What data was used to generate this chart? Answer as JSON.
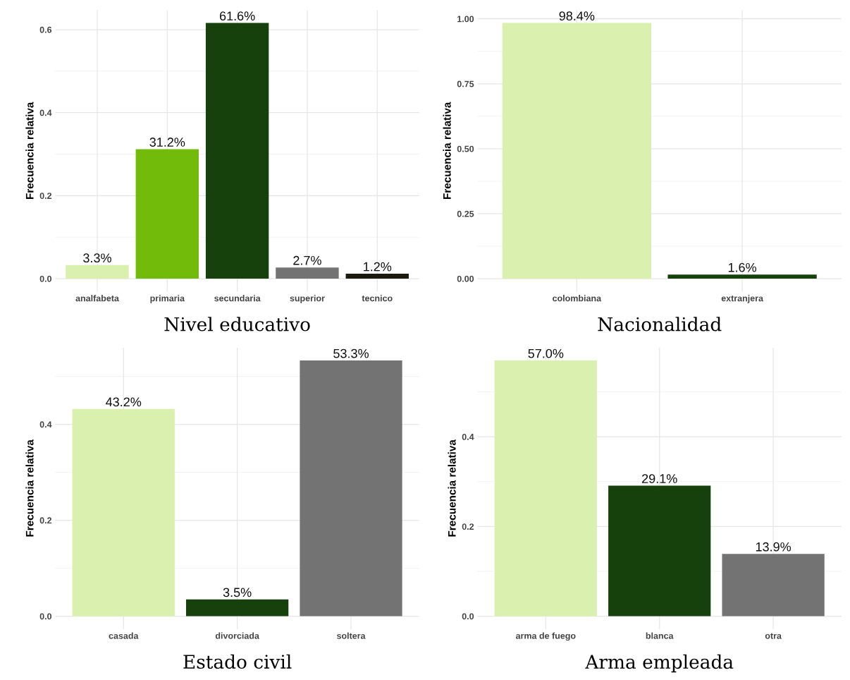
{
  "chart_data": [
    {
      "type": "bar",
      "xlabel": "Nivel educativo",
      "ylabel": "Frecuencia relativa",
      "categories": [
        "analfabeta",
        "primaria",
        "secundaria",
        "superior",
        "tecnico"
      ],
      "values": [
        0.033,
        0.312,
        0.616,
        0.027,
        0.012
      ],
      "colors": [
        "#d9f0ae",
        "#72bb0a",
        "#17410c",
        "#737373",
        "#1a1a0f"
      ],
      "value_labels": [
        "3.3%",
        "31.2%",
        "61.6%",
        "2.7%",
        "1.2%"
      ],
      "ylim": [
        -0.0308,
        0.6468
      ],
      "yticks": [
        {
          "value": 0,
          "label": "0.0"
        },
        {
          "value": 0.2,
          "label": "0.2"
        },
        {
          "value": 0.4,
          "label": "0.4"
        },
        {
          "value": 0.6,
          "label": "0.6"
        }
      ],
      "grid": true
    },
    {
      "type": "bar",
      "xlabel": "Nacionalidad",
      "ylabel": "Frecuencia relativa",
      "categories": [
        "colombiana",
        "extranjera"
      ],
      "values": [
        0.984,
        0.016
      ],
      "colors": [
        "#d9f0ae",
        "#17410c"
      ],
      "value_labels": [
        "98.4%",
        "1.6%"
      ],
      "ylim": [
        -0.0492,
        1.0332
      ],
      "yticks": [
        {
          "value": 0,
          "label": "0.00"
        },
        {
          "value": 0.25,
          "label": "0.25"
        },
        {
          "value": 0.5,
          "label": "0.50"
        },
        {
          "value": 0.75,
          "label": "0.75"
        },
        {
          "value": 1,
          "label": "1.00"
        }
      ],
      "grid": true
    },
    {
      "type": "bar",
      "xlabel": "Estado civil",
      "ylabel": "Frecuencia relativa",
      "categories": [
        "casada",
        "divorciada",
        "soltera"
      ],
      "values": [
        0.432,
        0.035,
        0.533
      ],
      "colors": [
        "#d9f0ae",
        "#17410c",
        "#737373"
      ],
      "value_labels": [
        "43.2%",
        "3.5%",
        "53.3%"
      ],
      "ylim": [
        -0.02665,
        0.55965
      ],
      "yticks": [
        {
          "value": 0,
          "label": "0.0"
        },
        {
          "value": 0.2,
          "label": "0.2"
        },
        {
          "value": 0.4,
          "label": "0.4"
        }
      ],
      "grid": true
    },
    {
      "type": "bar",
      "xlabel": "Arma empleada",
      "ylabel": "Frecuencia relativa",
      "categories": [
        "arma de fuego",
        "blanca",
        "otra"
      ],
      "values": [
        0.57,
        0.291,
        0.139
      ],
      "colors": [
        "#d9f0ae",
        "#17410c",
        "#737373"
      ],
      "value_labels": [
        "57.0%",
        "29.1%",
        "13.9%"
      ],
      "ylim": [
        -0.0285,
        0.5985
      ],
      "yticks": [
        {
          "value": 0,
          "label": "0.0"
        },
        {
          "value": 0.2,
          "label": "0.2"
        },
        {
          "value": 0.4,
          "label": "0.4"
        }
      ],
      "grid": true
    }
  ]
}
